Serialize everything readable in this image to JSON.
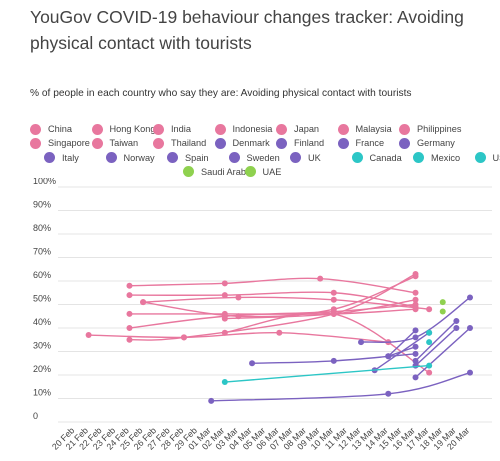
{
  "title": "YouGov COVID-19 behaviour changes tracker: Avoiding physical contact with tourists",
  "subtitle": "% of people in each country who say they are: Avoiding physical contact with tourists",
  "legend_rows": [
    [
      "China",
      "Hong Kong",
      "India",
      "Indonesia",
      "Japan",
      "Malaysia",
      "Philippines"
    ],
    [
      "Singapore",
      "Taiwan",
      "Thailand",
      "Denmark",
      "Finland",
      "France",
      "Germany"
    ],
    [
      "Italy",
      "Norway",
      "Spain",
      "Sweden",
      "UK",
      "Canada",
      "Mexico",
      "USA"
    ],
    [
      "Saudi Arabia",
      "UAE"
    ]
  ],
  "colors": {
    "asia": "#e8779e",
    "europe": "#7b62c0",
    "americas": "#2cc6c6",
    "middle_east": "#8fd14f",
    "grid": "#e4e4e4"
  },
  "chart_data": {
    "type": "line",
    "title": "YouGov COVID-19 behaviour changes tracker: Avoiding physical contact with tourists",
    "subtitle": "% of people in each country who say they are: Avoiding physical contact with tourists",
    "xlabel": "",
    "ylabel": "",
    "ylim": [
      0,
      100
    ],
    "y_ticks": [
      "0",
      "10%",
      "20%",
      "30%",
      "40%",
      "50%",
      "60%",
      "70%",
      "80%",
      "90%",
      "100%"
    ],
    "x_ticks": [
      "20 Feb",
      "21 Feb",
      "22 Feb",
      "23 Feb",
      "24 Feb",
      "25 Feb",
      "26 Feb",
      "27 Feb",
      "28 Feb",
      "29 Feb",
      "01 Mar",
      "02 Mar",
      "03 Mar",
      "04 Mar",
      "05 Mar",
      "06 Mar",
      "07 Mar",
      "08 Mar",
      "09 Mar",
      "10 Mar",
      "11 Mar",
      "12 Mar",
      "13 Mar",
      "14 Mar",
      "15 Mar",
      "16 Mar",
      "17 Mar",
      "18 Mar",
      "19 Mar",
      "20 Mar"
    ],
    "grid": true,
    "legend_position": "top",
    "series": [
      {
        "name": "China",
        "group": "asia",
        "points": [
          [
            "24 Feb",
            54
          ],
          [
            "02 Mar",
            54
          ],
          [
            "10 Mar",
            55
          ],
          [
            "16 Mar",
            49
          ]
        ]
      },
      {
        "name": "Hong Kong",
        "group": "asia",
        "points": [
          [
            "24 Feb",
            58
          ],
          [
            "02 Mar",
            59
          ],
          [
            "09 Mar",
            61
          ],
          [
            "16 Mar",
            55
          ]
        ]
      },
      {
        "name": "India",
        "group": "asia",
        "points": [
          [
            "24 Feb",
            46
          ],
          [
            "02 Mar",
            46
          ],
          [
            "10 Mar",
            46
          ],
          [
            "16 Mar",
            48
          ]
        ]
      },
      {
        "name": "Indonesia",
        "group": "asia",
        "points": [
          [
            "25 Feb",
            51
          ],
          [
            "03 Mar",
            45
          ],
          [
            "10 Mar",
            48
          ],
          [
            "16 Mar",
            62
          ]
        ]
      },
      {
        "name": "Japan",
        "group": "asia",
        "points": [
          [
            "24 Feb",
            40
          ],
          [
            "02 Mar",
            45
          ],
          [
            "10 Mar",
            47
          ],
          [
            "16 Mar",
            50
          ]
        ]
      },
      {
        "name": "Malaysia",
        "group": "asia",
        "points": [
          [
            "24 Feb",
            35
          ],
          [
            "28 Feb",
            36
          ],
          [
            "10 Mar",
            46
          ],
          [
            "16 Mar",
            63
          ]
        ]
      },
      {
        "name": "Philippines",
        "group": "asia",
        "points": [
          [
            "02 Mar",
            44
          ],
          [
            "10 Mar",
            46
          ],
          [
            "16 Mar",
            52
          ]
        ]
      },
      {
        "name": "Singapore",
        "group": "asia",
        "points": [
          [
            "25 Feb",
            51
          ],
          [
            "03 Mar",
            53
          ],
          [
            "10 Mar",
            52
          ],
          [
            "17 Mar",
            48
          ]
        ]
      },
      {
        "name": "Taiwan",
        "group": "asia",
        "points": [
          [
            "21 Feb",
            37
          ],
          [
            "28 Feb",
            36
          ],
          [
            "06 Mar",
            38
          ],
          [
            "14 Mar",
            34
          ]
        ]
      },
      {
        "name": "Thailand",
        "group": "asia",
        "points": [
          [
            "02 Mar",
            38
          ],
          [
            "10 Mar",
            46
          ],
          [
            "17 Mar",
            21
          ]
        ]
      },
      {
        "name": "Denmark",
        "group": "europe",
        "points": [
          [
            "16 Mar",
            19
          ],
          [
            "20 Mar",
            40
          ]
        ]
      },
      {
        "name": "Finland",
        "group": "europe",
        "points": [
          [
            "16 Mar",
            26
          ],
          [
            "19 Mar",
            43
          ]
        ]
      },
      {
        "name": "France",
        "group": "europe",
        "points": [
          [
            "04 Mar",
            25
          ],
          [
            "10 Mar",
            26
          ],
          [
            "16 Mar",
            29
          ]
        ]
      },
      {
        "name": "Germany",
        "group": "europe",
        "points": [
          [
            "12 Mar",
            34
          ],
          [
            "16 Mar",
            36
          ],
          [
            "20 Mar",
            53
          ]
        ]
      },
      {
        "name": "Italy",
        "group": "europe",
        "points": [
          [
            "14 Mar",
            28
          ],
          [
            "16 Mar",
            39
          ]
        ]
      },
      {
        "name": "Norway",
        "group": "europe",
        "points": [
          [
            "13 Mar",
            22
          ],
          [
            "17 Mar",
            38
          ]
        ]
      },
      {
        "name": "Spain",
        "group": "europe",
        "points": [
          [
            "01 Mar",
            9
          ],
          [
            "14 Mar",
            12
          ],
          [
            "20 Mar",
            21
          ]
        ]
      },
      {
        "name": "Sweden",
        "group": "europe",
        "points": [
          [
            "16 Mar",
            24
          ],
          [
            "19 Mar",
            40
          ]
        ]
      },
      {
        "name": "UK",
        "group": "europe",
        "points": [
          [
            "14 Mar",
            28
          ],
          [
            "16 Mar",
            32
          ]
        ]
      },
      {
        "name": "Canada",
        "group": "americas",
        "points": [
          [
            "02 Mar",
            17
          ],
          [
            "17 Mar",
            24
          ]
        ]
      },
      {
        "name": "Mexico",
        "group": "americas",
        "points": [
          [
            "17 Mar",
            34
          ]
        ]
      },
      {
        "name": "USA",
        "group": "americas",
        "points": [
          [
            "17 Mar",
            38
          ]
        ]
      },
      {
        "name": "Saudi Arabia",
        "group": "middle_east",
        "points": [
          [
            "18 Mar",
            51
          ]
        ]
      },
      {
        "name": "UAE",
        "group": "middle_east",
        "points": [
          [
            "18 Mar",
            47
          ]
        ]
      }
    ]
  }
}
